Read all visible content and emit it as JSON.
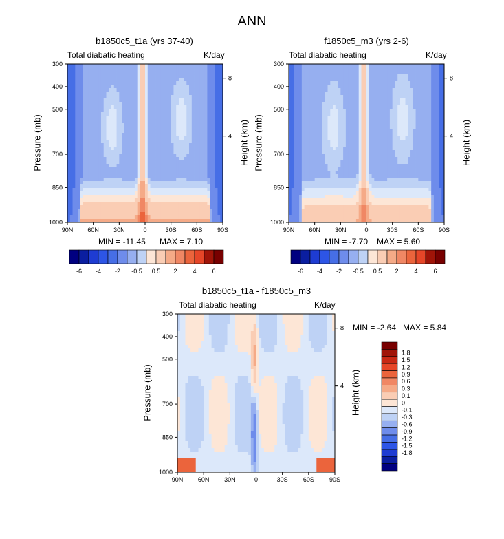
{
  "title": "ANN",
  "colors": {
    "cold": [
      "#000080",
      "#0A1EA0",
      "#1E3CD2",
      "#2D55E6",
      "#466EE6",
      "#6E8CEB",
      "#96AFF0",
      "#BED2F5",
      "#DCE8FA"
    ],
    "warm": [
      "#FDE6D6",
      "#FACDB4",
      "#F5AA87",
      "#F08764",
      "#EB643C",
      "#E64628",
      "#C82814",
      "#A01408",
      "#780000"
    ],
    "diff_scale": [
      "#780000",
      "#A01408",
      "#C82814",
      "#E64628",
      "#EB643C",
      "#F08764",
      "#F5AA87",
      "#FACDB4",
      "#FDE6D6",
      "#DCE8FA",
      "#BED2F5",
      "#96AFF0",
      "#6E8CEB",
      "#466EE6",
      "#2D55E6",
      "#1E3CD2",
      "#0A1EA0",
      "#000080"
    ]
  },
  "chart_data": [
    {
      "type": "heatmap",
      "title": "b1850c5_t1a (yrs 37-40)",
      "field": "Total diabatic heating",
      "units": "K/day",
      "xlabel": "",
      "ylabel": "Pressure (mb)",
      "ylabel_right": "Height (km)",
      "x_ticks": [
        "90N",
        "60N",
        "30N",
        "0",
        "30S",
        "60S",
        "90S"
      ],
      "x_range": [
        90,
        -90
      ],
      "y_ticks": [
        "300",
        "400",
        "500",
        "700",
        "850",
        "1000"
      ],
      "y_range": [
        1000,
        300
      ],
      "right_ticks": [
        "8",
        "4"
      ],
      "min_label": "MIN = -11.45",
      "max_label": "MAX =   7.10",
      "min": -11.45,
      "max": 7.1,
      "colorbar_labels": [
        "-6",
        "-4",
        "-2",
        "-0.5",
        "0.5",
        "2",
        "4",
        "6"
      ]
    },
    {
      "type": "heatmap",
      "title": "f1850c5_m3 (yrs 2-6)",
      "field": "Total diabatic heating",
      "units": "K/day",
      "xlabel": "",
      "ylabel": "Pressure (mb)",
      "ylabel_right": "Height (km)",
      "x_ticks": [
        "90N",
        "60N",
        "30N",
        "0",
        "30S",
        "60S",
        "90S"
      ],
      "x_range": [
        90,
        -90
      ],
      "y_ticks": [
        "300",
        "400",
        "500",
        "700",
        "850",
        "1000"
      ],
      "y_range": [
        1000,
        300
      ],
      "right_ticks": [
        "8",
        "4"
      ],
      "min_label": "MIN = -7.70",
      "max_label": "MAX =   5.60",
      "min": -7.7,
      "max": 5.6,
      "colorbar_labels": [
        "-6",
        "-4",
        "-2",
        "-0.5",
        "0.5",
        "2",
        "4",
        "6"
      ]
    },
    {
      "type": "heatmap",
      "title": "b1850c5_t1a - f1850c5_m3",
      "field": "Total diabatic heating",
      "units": "K/day",
      "xlabel": "",
      "ylabel": "Pressure (mb)",
      "ylabel_right": "Height (km)",
      "x_ticks": [
        "90N",
        "60N",
        "30N",
        "0",
        "30S",
        "60S",
        "90S"
      ],
      "x_range": [
        90,
        -90
      ],
      "y_ticks": [
        "300",
        "400",
        "500",
        "700",
        "850",
        "1000"
      ],
      "y_range": [
        1000,
        300
      ],
      "right_ticks": [
        "8",
        "4"
      ],
      "min_label": "MIN = -2.64",
      "max_label": "MAX =   5.84",
      "min": -2.64,
      "max": 5.84,
      "colorbar_labels": [
        "1.8",
        "1.5",
        "1.2",
        "0.9",
        "0.6",
        "0.3",
        "0.1",
        "0",
        "-0.1",
        "-0.3",
        "-0.6",
        "-0.9",
        "-1.2",
        "-1.5",
        "-1.8"
      ]
    }
  ]
}
